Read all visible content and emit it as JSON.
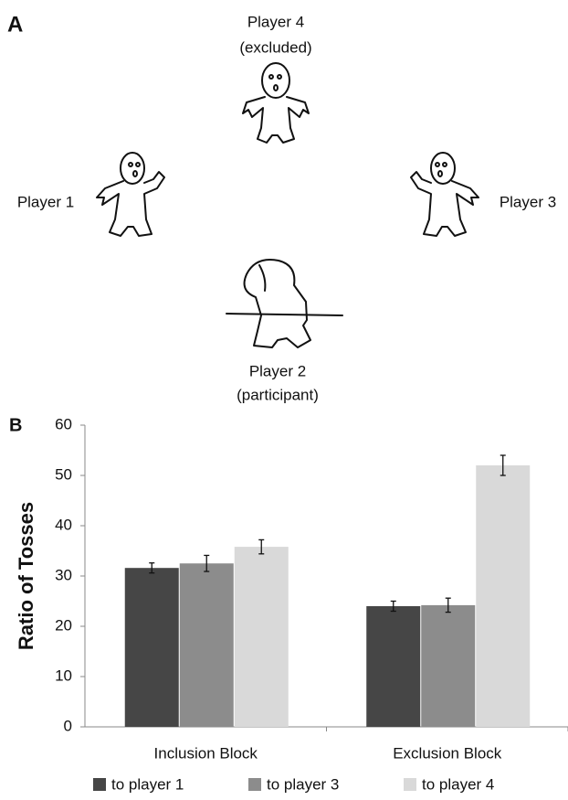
{
  "diagram": {
    "panel_label": "A",
    "players": [
      {
        "name": "Player 4",
        "role": "(excluded)"
      },
      {
        "name": "Player 1"
      },
      {
        "name": "Player 3"
      },
      {
        "name": "Player 2",
        "role": "(participant)"
      }
    ]
  },
  "chart_data": {
    "type": "bar",
    "panel_label": "B",
    "y_label": "Ratio of Tosses",
    "categories": [
      "Inclusion Block",
      "Exclusion Block"
    ],
    "series": [
      {
        "name": "to player 1",
        "color": "#464646",
        "values": [
          31.6,
          24.0
        ],
        "errors": [
          1.0,
          1.0
        ]
      },
      {
        "name": "to player 3",
        "color": "#8c8c8c",
        "values": [
          32.5,
          24.2
        ],
        "errors": [
          1.6,
          1.4
        ]
      },
      {
        "name": "to player 4",
        "color": "#d9d9d9",
        "values": [
          35.8,
          52.0
        ],
        "errors": [
          1.4,
          2.0
        ]
      }
    ],
    "ylim": [
      0,
      60
    ],
    "yticks": [
      0,
      10,
      20,
      30,
      40,
      50,
      60
    ],
    "grid": false
  }
}
